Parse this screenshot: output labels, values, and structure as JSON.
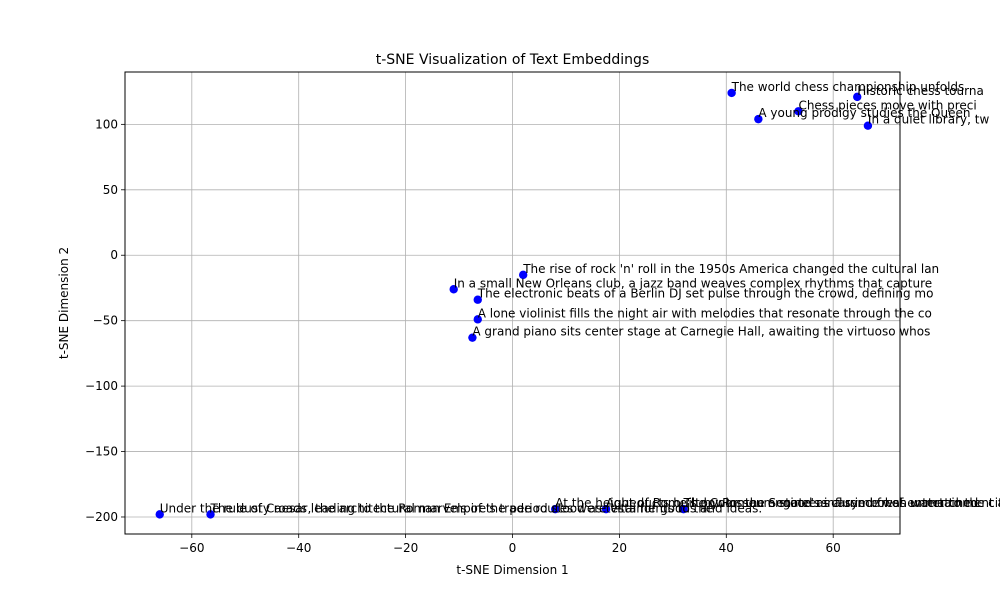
{
  "chart_data": {
    "type": "scatter",
    "title": "t-SNE Visualization of Text Embeddings",
    "xlabel": "t-SNE Dimension 1",
    "ylabel": "t-SNE Dimension 2",
    "xlim": [
      -72.5,
      72.5
    ],
    "ylim": [
      -213,
      140
    ],
    "xticks": [
      -60,
      -40,
      -20,
      0,
      20,
      40,
      60
    ],
    "yticks": [
      -200,
      -150,
      -100,
      -50,
      0,
      50,
      100
    ],
    "grid": true,
    "marker_color": "#0000ff",
    "points": [
      {
        "x": 41,
        "y": 124,
        "label": "The world chess championship unfolds"
      },
      {
        "x": 64.5,
        "y": 121,
        "label": "Historic chess tourna"
      },
      {
        "x": 53.5,
        "y": 110,
        "label": "Chess pieces move with preci"
      },
      {
        "x": 46,
        "y": 104,
        "label": "A young prodigy studies the Queen"
      },
      {
        "x": 66.5,
        "y": 99,
        "label": "In a quiet library, tw"
      },
      {
        "x": 2,
        "y": -15,
        "label": "The rise of rock 'n' roll in the 1950s America changed the cultural lan"
      },
      {
        "x": -11,
        "y": -26,
        "label": "In a small New Orleans club, a jazz band weaves complex rhythms that capture"
      },
      {
        "x": -6.5,
        "y": -34,
        "label": "The electronic beats of a Berlin DJ set pulse through the crowd, defining mo"
      },
      {
        "x": -6.5,
        "y": -49,
        "label": "A lone violinist fills the night air with melodies that resonate through the co"
      },
      {
        "x": -7.5,
        "y": -63,
        "label": "A grand piano sits center stage at Carnegie Hall, awaiting the virtuoso whos"
      },
      {
        "x": -66,
        "y": -198,
        "label": "Under the rule of Caesar, the architectural marvels of the period stood as testaments to the"
      },
      {
        "x": -56.5,
        "y": -198,
        "label": "The dusty roads leading to the Roman Empire's trade routes were vital for goods and ideas."
      },
      {
        "x": 8,
        "y": -194,
        "label": "At the height of Rome's power, the Senate's influence was unmatched"
      },
      {
        "x": 17.5,
        "y": -194,
        "label": "Aqueducts built by Roman engineers carried fresh water to the cities"
      },
      {
        "x": 32,
        "y": -194,
        "label": "The Colosseum stood as a symbol of entertainment and Roman pride."
      }
    ]
  }
}
